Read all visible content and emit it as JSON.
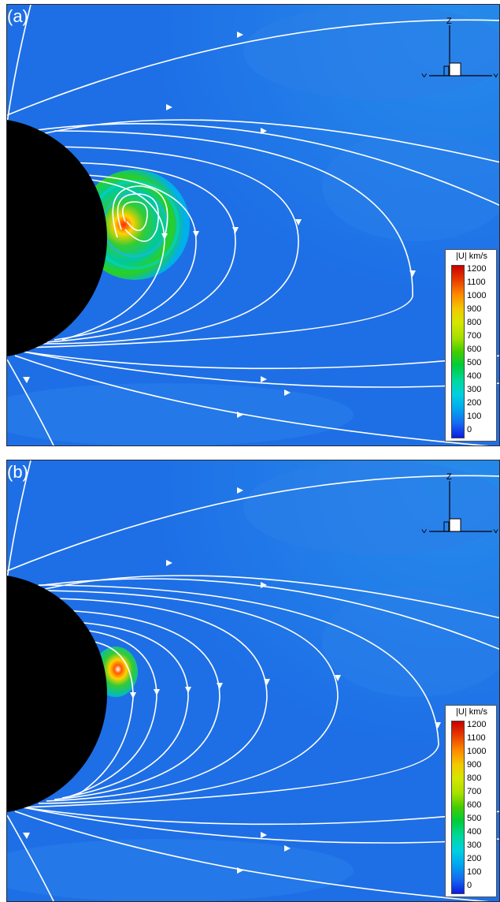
{
  "panels": [
    {
      "label": "(a)"
    },
    {
      "label": "(b)"
    }
  ],
  "axes": {
    "z": "Z",
    "y": "Y",
    "x": "X"
  },
  "legend": {
    "title": "|U| km/s",
    "ticks": [
      "1200",
      "1100",
      "1000",
      "900",
      "800",
      "700",
      "600",
      "500",
      "400",
      "300",
      "200",
      "100",
      "0"
    ]
  },
  "colors": {
    "background_flow": "#1e6fe6",
    "body": "#000000",
    "streamline": "#ffffff"
  }
}
